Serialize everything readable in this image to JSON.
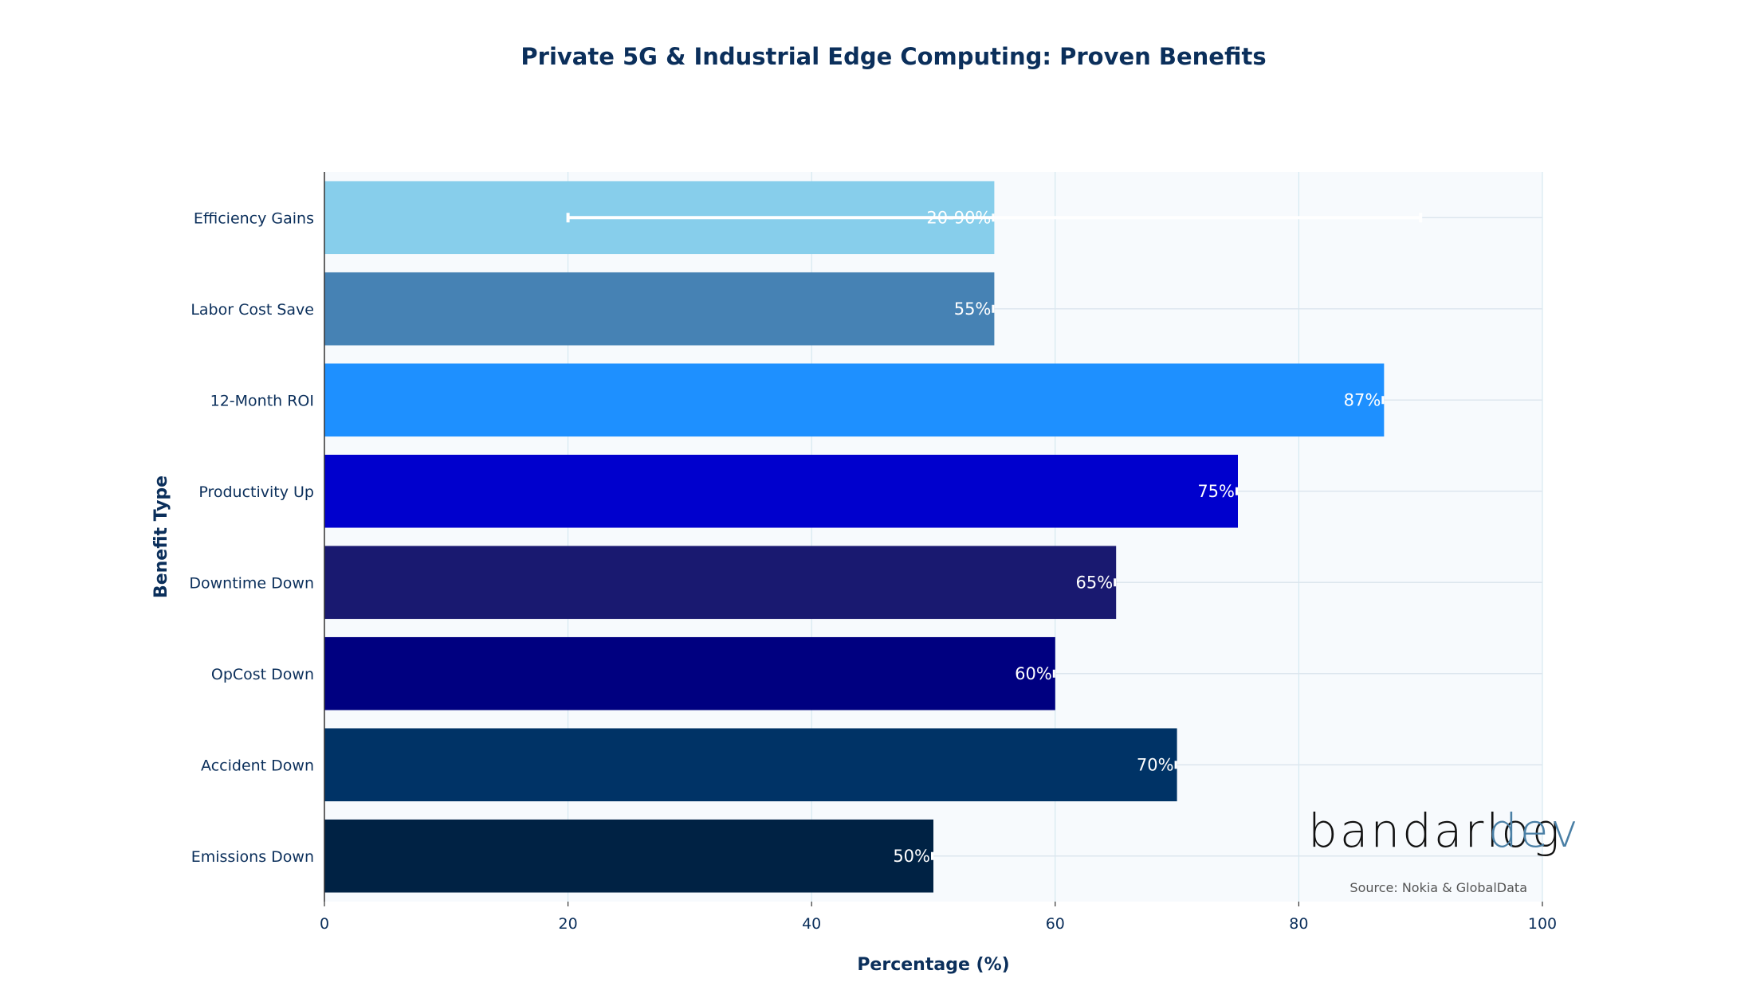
{
  "chart_data": {
    "type": "bar",
    "orientation": "horizontal",
    "title": "Private 5G & Industrial Edge Computing: Proven Benefits",
    "xlabel": "Percentage (%)",
    "ylabel": "Benefit Type",
    "xlim": [
      0,
      100
    ],
    "xticks": [
      0,
      20,
      40,
      60,
      80,
      100
    ],
    "categories": [
      "Efficiency Gains",
      "Labor Cost Save",
      "12-Month ROI",
      "Productivity Up",
      "Downtime Down",
      "OpCost Down",
      "Accident Down",
      "Emissions Down"
    ],
    "values": [
      55,
      55,
      87,
      75,
      65,
      60,
      70,
      50
    ],
    "labels": [
      "20-90%",
      "55%",
      "87%",
      "75%",
      "65%",
      "60%",
      "70%",
      "50%"
    ],
    "error_ranges": [
      [
        20,
        90
      ],
      null,
      null,
      null,
      null,
      null,
      null,
      null
    ],
    "colors": [
      "#87ceeb",
      "#4682b4",
      "#1e90ff",
      "#0000cd",
      "#191970",
      "#000080",
      "#003366",
      "#002244"
    ],
    "grid": true,
    "source": "Source: Nokia & GlobalData",
    "logo": {
      "main": "bandarlog",
      "accent": "dev"
    }
  }
}
